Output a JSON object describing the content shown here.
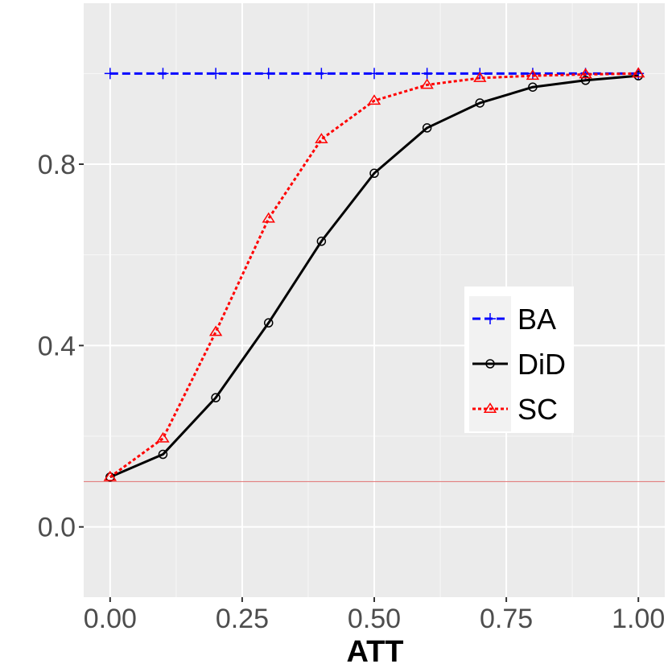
{
  "chart_data": {
    "type": "line",
    "title": "",
    "xlabel": "ATT",
    "ylabel": "",
    "xlim": [
      -0.05,
      1.05
    ],
    "ylim": [
      -0.155,
      1.155
    ],
    "x_ticks": [
      0.0,
      0.25,
      0.5,
      0.75,
      1.0
    ],
    "x_tick_labels": [
      "0.00",
      "0.25",
      "0.50",
      "0.75",
      "1.00"
    ],
    "y_ticks": [
      0.0,
      0.4,
      0.8
    ],
    "y_tick_labels": [
      "0.0",
      "0.4",
      "0.8"
    ],
    "grid": true,
    "legend_position": "right",
    "reference_line": {
      "y": 0.1,
      "color": "#e07070"
    },
    "x": [
      0.0,
      0.1,
      0.2,
      0.3,
      0.4,
      0.5,
      0.6,
      0.7,
      0.8,
      0.9,
      1.0
    ],
    "series": [
      {
        "name": "BA",
        "color": "#0000ff",
        "dash": "dashed",
        "marker": "plus",
        "values": [
          1.0,
          1.0,
          1.0,
          1.0,
          1.0,
          1.0,
          1.0,
          1.0,
          1.0,
          1.0,
          1.0
        ]
      },
      {
        "name": "DiD",
        "color": "#000000",
        "dash": "solid",
        "marker": "circle",
        "values": [
          0.11,
          0.16,
          0.285,
          0.45,
          0.63,
          0.78,
          0.88,
          0.935,
          0.97,
          0.985,
          0.995
        ]
      },
      {
        "name": "SC",
        "color": "#ff0000",
        "dash": "dotted",
        "marker": "triangle",
        "values": [
          0.11,
          0.195,
          0.43,
          0.68,
          0.855,
          0.94,
          0.975,
          0.99,
          0.995,
          0.998,
          1.0
        ]
      }
    ]
  }
}
